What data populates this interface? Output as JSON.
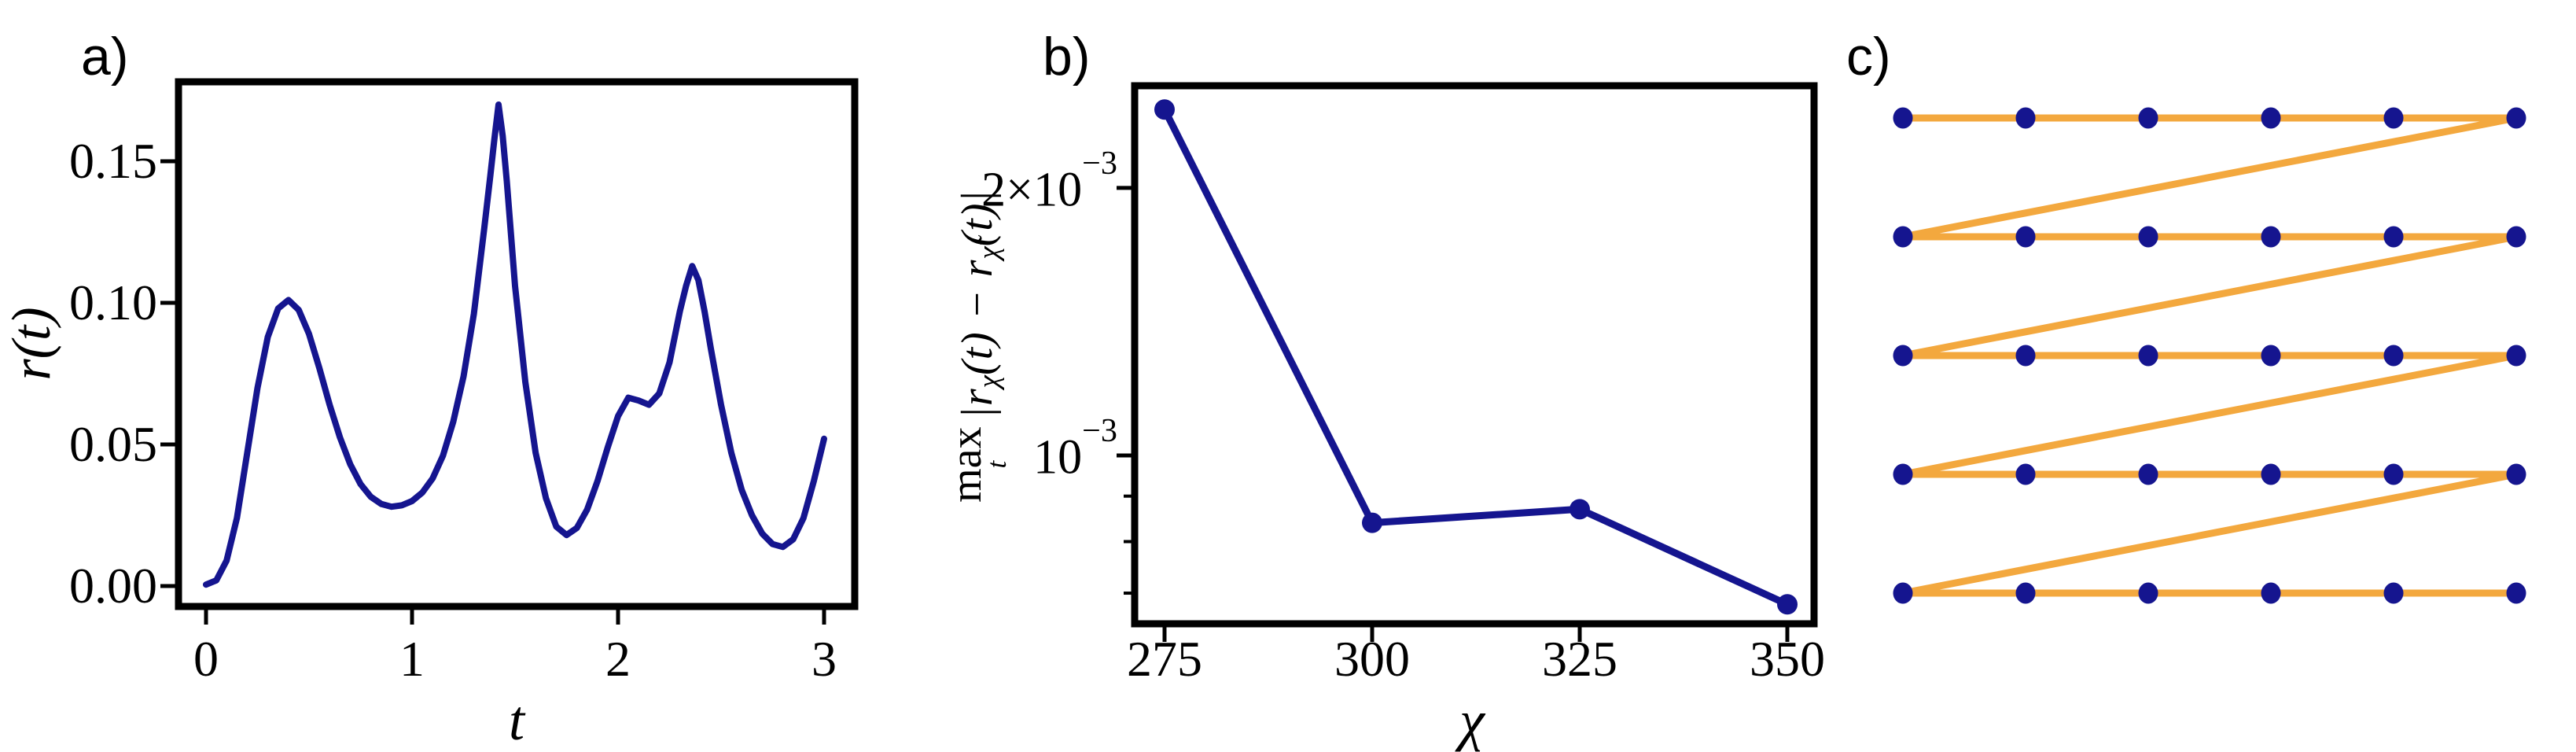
{
  "colors": {
    "navy": "#15158f",
    "orange": "#f3a83e",
    "axis": "#000000",
    "background": "#ffffff"
  },
  "panels": {
    "a": {
      "label": "a)"
    },
    "b": {
      "label": "b)"
    },
    "c": {
      "label": "c)"
    }
  },
  "chart_data": [
    {
      "id": "panel-a",
      "type": "line",
      "title": "",
      "xlabel": "t",
      "ylabel": "r(t)",
      "xlim": [
        -0.13,
        3.15
      ],
      "ylim": [
        -0.007,
        0.178
      ],
      "grid": false,
      "xticks": [
        0,
        1,
        2,
        3
      ],
      "xtick_labels": [
        "0",
        "1",
        "2",
        "3"
      ],
      "yticks": [
        0.0,
        0.05,
        0.1,
        0.15
      ],
      "ytick_labels": [
        "0.00",
        "0.05",
        "0.10",
        "0.15"
      ],
      "line_color": "navy",
      "x": [
        0.0,
        0.05,
        0.1,
        0.15,
        0.2,
        0.25,
        0.3,
        0.35,
        0.4,
        0.45,
        0.5,
        0.55,
        0.6,
        0.65,
        0.7,
        0.75,
        0.8,
        0.85,
        0.9,
        0.95,
        1.0,
        1.05,
        1.1,
        1.15,
        1.2,
        1.25,
        1.3,
        1.35,
        1.38,
        1.4,
        1.42,
        1.44,
        1.46,
        1.5,
        1.55,
        1.6,
        1.65,
        1.7,
        1.75,
        1.8,
        1.85,
        1.9,
        1.95,
        2.0,
        2.05,
        2.1,
        2.15,
        2.2,
        2.25,
        2.3,
        2.33,
        2.36,
        2.39,
        2.42,
        2.45,
        2.5,
        2.55,
        2.6,
        2.65,
        2.7,
        2.75,
        2.8,
        2.85,
        2.9,
        2.95,
        3.0
      ],
      "y": [
        0.0005,
        0.002,
        0.009,
        0.024,
        0.047,
        0.07,
        0.088,
        0.098,
        0.101,
        0.0975,
        0.089,
        0.077,
        0.064,
        0.0525,
        0.043,
        0.036,
        0.0315,
        0.029,
        0.028,
        0.0285,
        0.03,
        0.033,
        0.038,
        0.046,
        0.058,
        0.074,
        0.096,
        0.126,
        0.145,
        0.158,
        0.17,
        0.159,
        0.143,
        0.106,
        0.072,
        0.047,
        0.031,
        0.021,
        0.018,
        0.0205,
        0.027,
        0.037,
        0.049,
        0.06,
        0.0665,
        0.0655,
        0.064,
        0.068,
        0.079,
        0.097,
        0.106,
        0.113,
        0.108,
        0.097,
        0.084,
        0.064,
        0.047,
        0.034,
        0.025,
        0.0185,
        0.0148,
        0.0138,
        0.0165,
        0.024,
        0.037,
        0.052
      ]
    },
    {
      "id": "panel-b",
      "type": "line",
      "markers": true,
      "xlabel": "χ",
      "ylabel_parts": {
        "max": "max",
        "max_sub": "t",
        "seg1": "|r",
        "sub1": "χ",
        "seg2": "(t) − r",
        "sub2": "χ̃",
        "seg3": "(t)|"
      },
      "yscale": "log",
      "xlim": [
        271.4,
        353.2
      ],
      "ylim": [
        0.00064,
        0.0026
      ],
      "grid": false,
      "xticks": [
        275,
        300,
        325,
        350
      ],
      "xtick_labels": [
        "275",
        "300",
        "325",
        "350"
      ],
      "ytick_major": [
        {
          "value": 0.002,
          "base": "2×10",
          "exp": "−3"
        },
        {
          "value": 0.001,
          "base": "10",
          "exp": "−3"
        }
      ],
      "ytick_minor": [
        0.0009,
        0.0008,
        0.0007
      ],
      "line_color": "navy",
      "x": [
        275,
        300,
        325,
        350
      ],
      "y": [
        0.00245,
        0.00084,
        0.00087,
        0.00068
      ]
    },
    {
      "id": "panel-c",
      "type": "diagram",
      "rows": 5,
      "cols": 6,
      "node_color": "navy",
      "edge_color": "orange"
    }
  ]
}
